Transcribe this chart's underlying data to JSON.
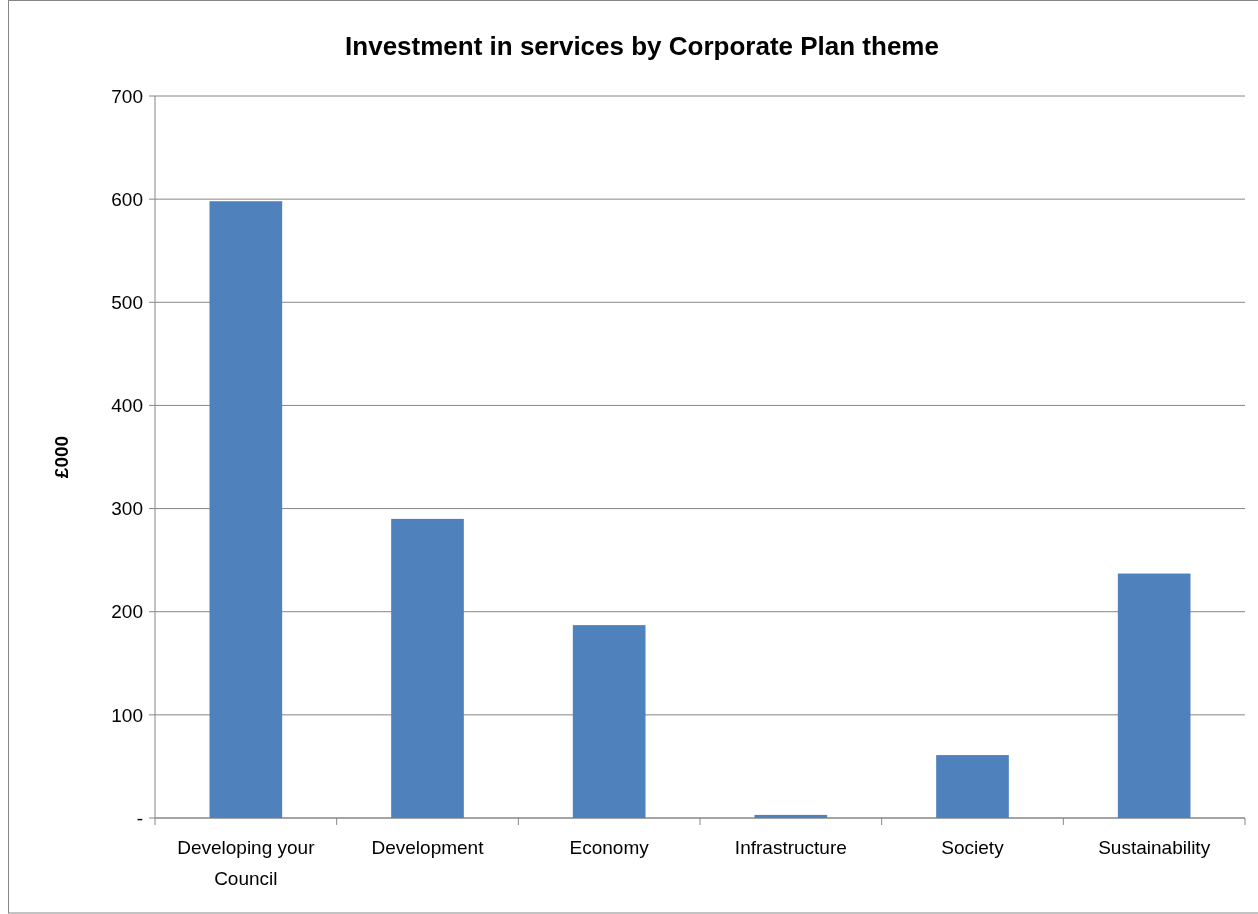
{
  "chart_data": {
    "type": "bar",
    "title": "Investment in services by Corporate Plan theme",
    "ylabel": "£000",
    "categories": [
      "Developing your Council",
      "Development",
      "Economy",
      "Infrastructure",
      "Society",
      "Sustainability"
    ],
    "values": [
      598,
      290,
      187,
      3,
      61,
      237
    ],
    "color": "#4f81bd",
    "ylim": [
      0,
      700
    ],
    "yticks": [
      {
        "value": 0,
        "label": "-"
      },
      100,
      200,
      300,
      400,
      500,
      600,
      700
    ],
    "grid": "y"
  }
}
